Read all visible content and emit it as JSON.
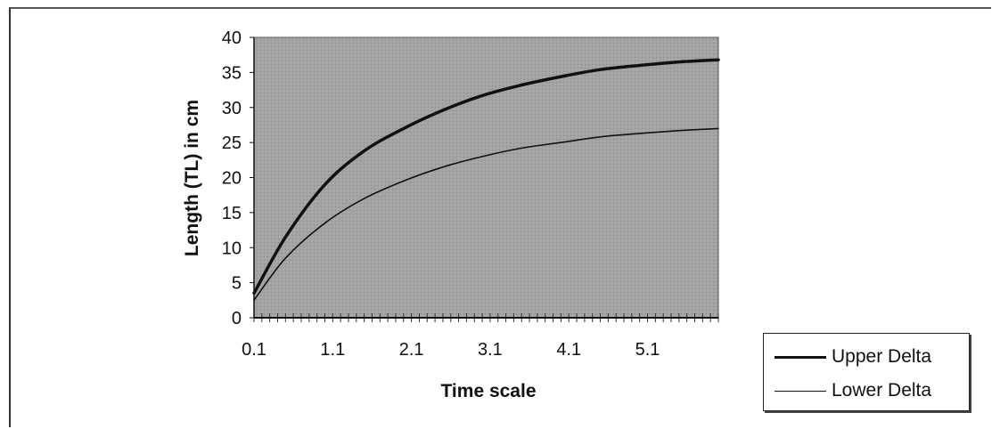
{
  "chart_data": {
    "type": "line",
    "xlabel": "Time scale",
    "ylabel": "Length (TL) in cm",
    "xlim": [
      0.1,
      6.0
    ],
    "ylim": [
      0,
      40
    ],
    "x_tick_labels": [
      "0.1",
      "1.1",
      "2.1",
      "3.1",
      "4.1",
      "5.1"
    ],
    "y_tick_labels": [
      "0",
      "5",
      "10",
      "15",
      "20",
      "25",
      "30",
      "35",
      "40"
    ],
    "grid": false,
    "legend_position": "bottom-right, outside plot",
    "colors": {
      "plot_background": "#a3a3a3",
      "line": "#111111"
    },
    "x": [
      0.1,
      0.5,
      1.0,
      1.5,
      2.0,
      2.5,
      3.0,
      3.5,
      4.0,
      4.5,
      5.0,
      5.5,
      6.0
    ],
    "series": [
      {
        "name": "Upper Delta",
        "line_weight": "thick",
        "values": [
          3.5,
          11.5,
          19.0,
          23.8,
          27.0,
          29.6,
          31.7,
          33.2,
          34.4,
          35.4,
          36.0,
          36.5,
          36.8
        ]
      },
      {
        "name": "Lower Delta",
        "line_weight": "thin",
        "values": [
          2.5,
          8.5,
          13.5,
          17.0,
          19.5,
          21.5,
          23.0,
          24.2,
          25.0,
          25.8,
          26.3,
          26.7,
          27.0
        ]
      }
    ]
  }
}
